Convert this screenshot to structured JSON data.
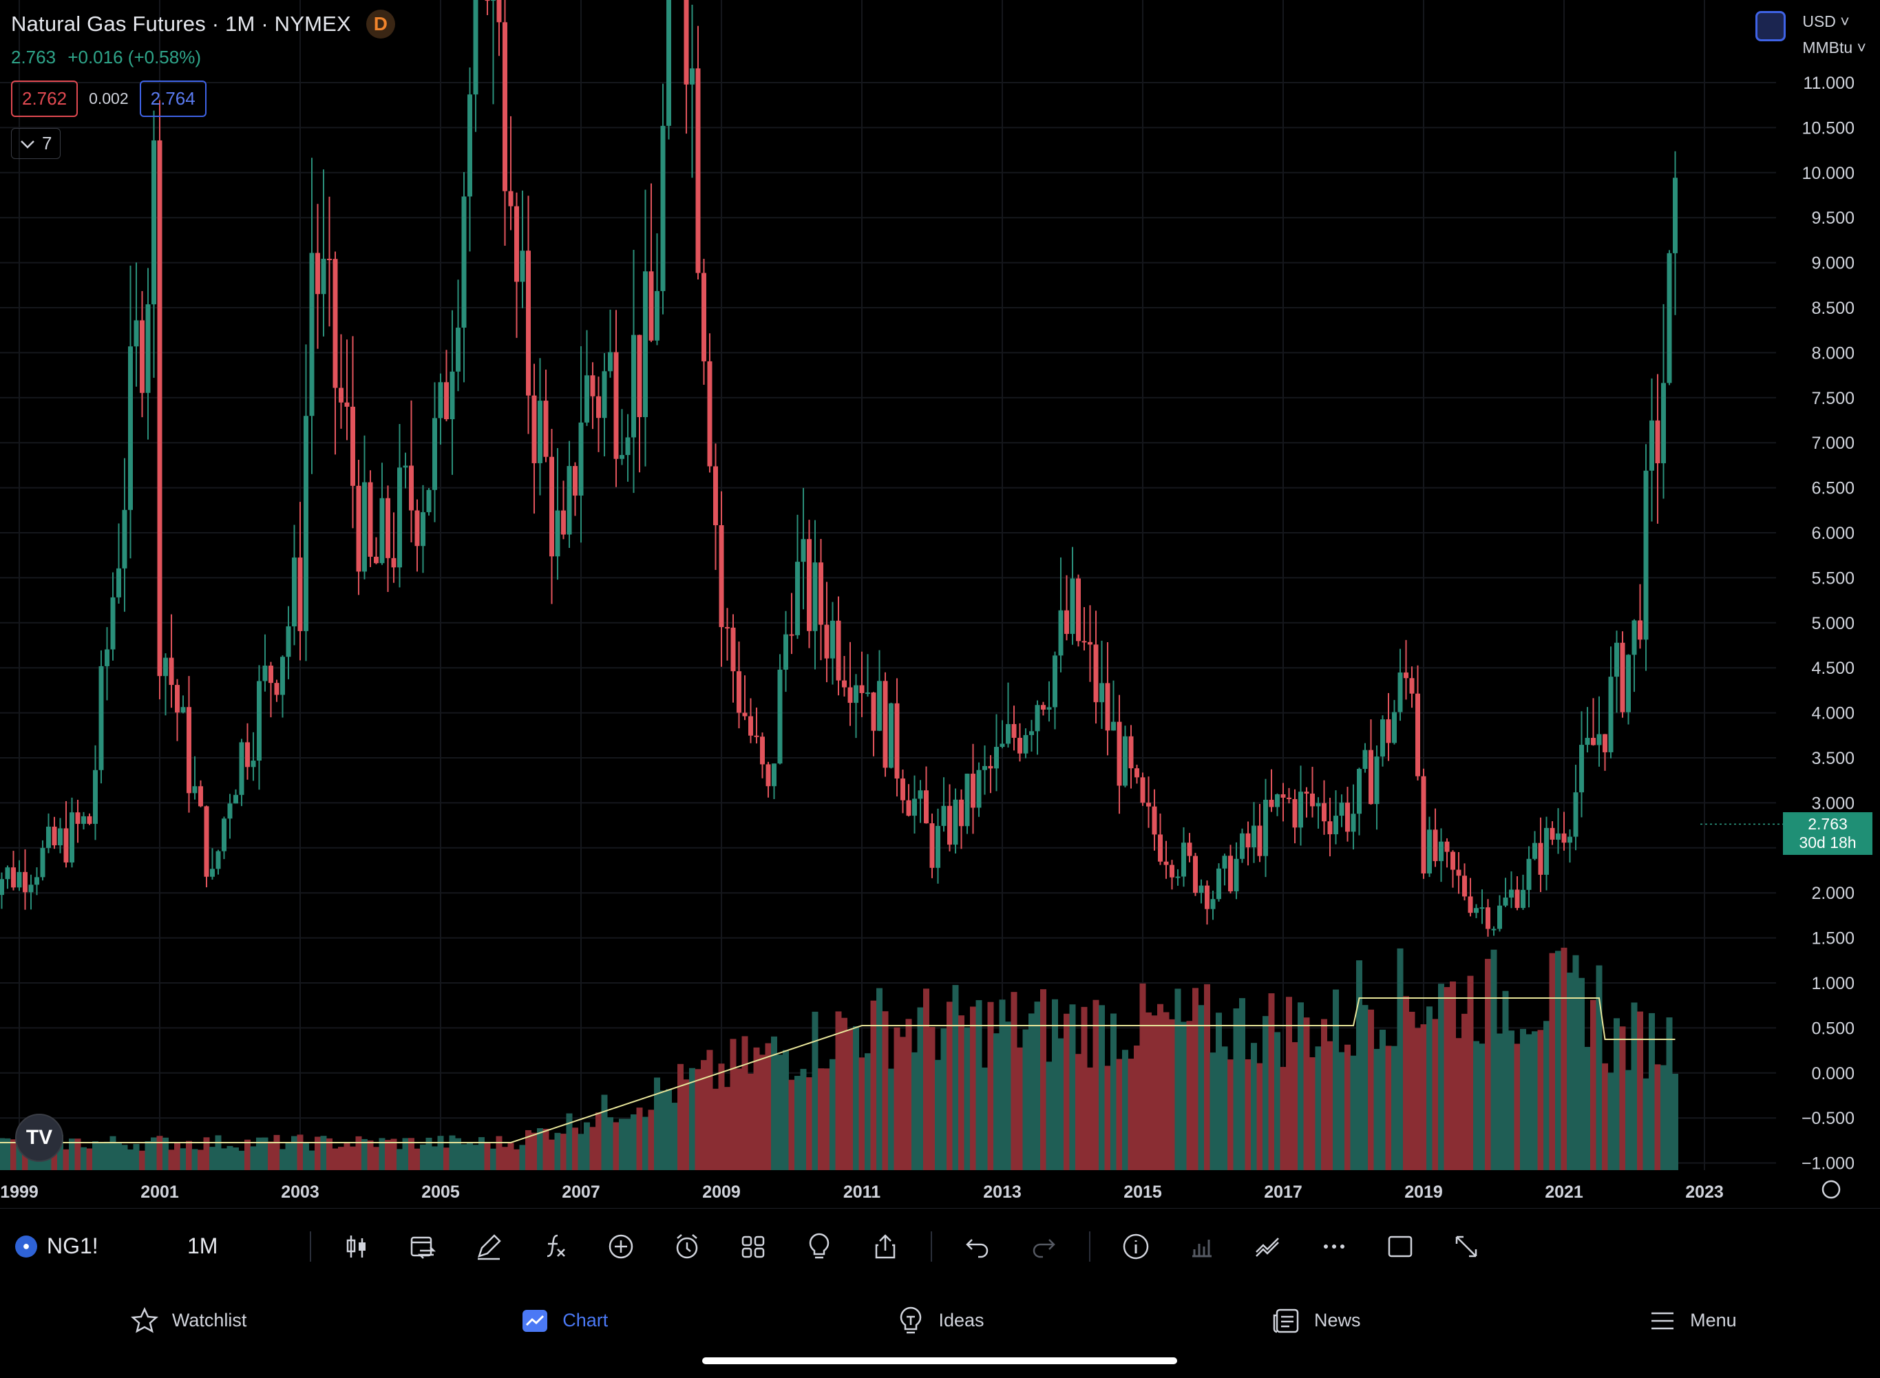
{
  "header": {
    "title": "Natural Gas Futures · 1M · NYMEX",
    "badge": "D",
    "last": "2.763",
    "change": "+0.016 (+0.58%)",
    "bid": "2.762",
    "spread": "0.002",
    "ask": "2.764",
    "indicators_count": "7"
  },
  "top_right": {
    "currency": "USD",
    "unit": "MMBtu"
  },
  "price_tag": {
    "price": "2.763",
    "countdown": "30d 18h"
  },
  "toolbar": {
    "symbol": "NG1!",
    "interval": "1M"
  },
  "nav": {
    "watchlist": "Watchlist",
    "chart": "Chart",
    "ideas": "Ideas",
    "news": "News",
    "menu": "Menu"
  },
  "colors": {
    "up": "#2a8f7a",
    "down": "#e2545c",
    "vol_up": "#1f5e55",
    "vol_down": "#8a2d33",
    "ma": "#e8e59a",
    "accent": "#4b79f5"
  },
  "icons": [
    "candles-icon",
    "compare-icon",
    "draw-icon",
    "indicator-icon",
    "add-icon",
    "alert-icon",
    "layout-icon",
    "ideas-icon",
    "share-icon",
    "undo-icon",
    "redo-icon",
    "info-icon",
    "volume-icon",
    "trend-icon",
    "more-icon",
    "square-icon",
    "fullscreen-icon"
  ],
  "chart_data": {
    "type": "candlestick",
    "title": "Natural Gas Futures · 1M · NYMEX",
    "y_axis_ticks": [
      "11.000",
      "10.500",
      "10.000",
      "9.500",
      "9.000",
      "8.500",
      "8.000",
      "7.500",
      "7.000",
      "6.500",
      "6.000",
      "5.500",
      "5.000",
      "4.500",
      "4.000",
      "3.500",
      "3.000",
      "2.500",
      "2.000",
      "1.500",
      "1.000",
      "0.500",
      "0.000",
      "−0.500",
      "−1.000"
    ],
    "x_axis_ticks": [
      "1999",
      "2001",
      "2003",
      "2005",
      "2007",
      "2009",
      "2011",
      "2013",
      "2015",
      "2017",
      "2019",
      "2021",
      "2023"
    ],
    "ylim": [
      -1.0,
      11.3
    ],
    "grid": true,
    "approx_monthly_close": [
      {
        "x": "1999",
        "y": 2.2
      },
      {
        "x": "2000",
        "y": 2.8
      },
      {
        "x": "2000-12",
        "y": 9.8
      },
      {
        "x": "2001",
        "y": 5.0
      },
      {
        "x": "2001-10",
        "y": 2.1
      },
      {
        "x": "2002",
        "y": 3.2
      },
      {
        "x": "2003",
        "y": 5.4
      },
      {
        "x": "2003-03",
        "y": 9.2
      },
      {
        "x": "2004",
        "y": 5.5
      },
      {
        "x": "2005",
        "y": 7.0
      },
      {
        "x": "2005-10",
        "y": 14.0
      },
      {
        "x": "2006",
        "y": 9.0
      },
      {
        "x": "2006-10",
        "y": 5.5
      },
      {
        "x": "2007",
        "y": 7.5
      },
      {
        "x": "2008",
        "y": 8.0
      },
      {
        "x": "2008-06",
        "y": 13.5
      },
      {
        "x": "2009",
        "y": 5.0
      },
      {
        "x": "2009-09",
        "y": 3.0
      },
      {
        "x": "2010",
        "y": 5.5
      },
      {
        "x": "2011",
        "y": 4.5
      },
      {
        "x": "2012",
        "y": 2.5
      },
      {
        "x": "2013",
        "y": 3.5
      },
      {
        "x": "2014",
        "y": 5.0
      },
      {
        "x": "2015",
        "y": 2.8
      },
      {
        "x": "2016",
        "y": 2.0
      },
      {
        "x": "2017",
        "y": 3.0
      },
      {
        "x": "2018",
        "y": 2.9
      },
      {
        "x": "2018-11",
        "y": 4.5
      },
      {
        "x": "2019",
        "y": 2.5
      },
      {
        "x": "2020",
        "y": 1.7
      },
      {
        "x": "2021",
        "y": 2.8
      },
      {
        "x": "2022",
        "y": 4.8
      },
      {
        "x": "2022-08",
        "y": 9.0
      },
      {
        "x": "2023",
        "y": 2.763
      }
    ],
    "last_price": 2.763
  }
}
